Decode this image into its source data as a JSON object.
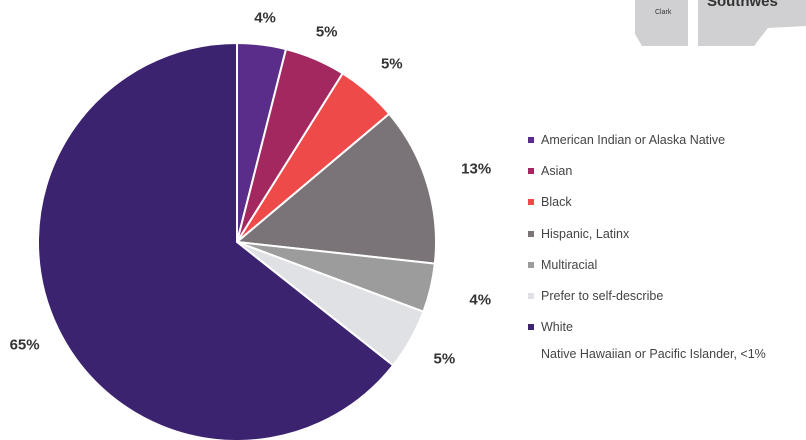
{
  "chart_data": {
    "type": "pie",
    "title": "",
    "slices": [
      {
        "label": "American Indian or Alaska Native",
        "value": 4,
        "display": "4%",
        "color": "#5b2d8a"
      },
      {
        "label": "Asian",
        "value": 5,
        "display": "5%",
        "color": "#a3285f"
      },
      {
        "label": "Black",
        "value": 5,
        "display": "5%",
        "color": "#ee4a4a"
      },
      {
        "label": "Hispanic, Latinx",
        "value": 13,
        "display": "13%",
        "color": "#7a7478"
      },
      {
        "label": "Multiracial",
        "value": 4,
        "display": "4%",
        "color": "#9c9c9c"
      },
      {
        "label": "Prefer to self-describe",
        "value": 5,
        "display": "5%",
        "color": "#dfe1e4"
      },
      {
        "label": "White",
        "value": 65,
        "display": "65%",
        "color": "#3b2370"
      }
    ],
    "legend_position": "right",
    "note": "Native Hawaiian or Pacific Islander, <1%"
  },
  "map_corner": {
    "small_label": "Clark",
    "big_label": "Southwes"
  }
}
